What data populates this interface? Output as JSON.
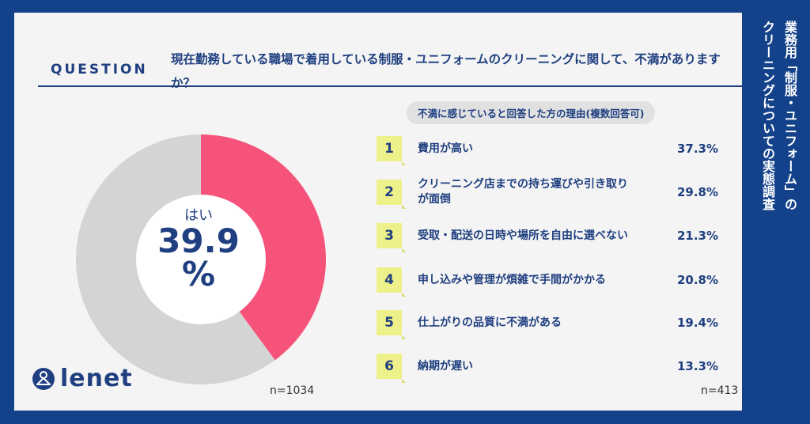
{
  "question": {
    "label": "QUESTION",
    "text": "現在勤務している職場で着用している制服・ユニフォームのクリーニングに関して、不満がありますか？"
  },
  "chart_data": [
    {
      "type": "pie",
      "categories": [
        "はい",
        ""
      ],
      "values": [
        39.9,
        60.1
      ],
      "center_label": "はい",
      "center_value": "39.9",
      "center_unit": "%",
      "n": "n=1034",
      "colors": [
        "#f6537a",
        "#d4d4d4"
      ]
    },
    {
      "type": "table",
      "title": "不満に感じていると回答した方の理由(複数回答可)",
      "rows": [
        {
          "rank": "1",
          "label": "費用が高い",
          "value": "37.3%"
        },
        {
          "rank": "2",
          "label": "クリーニング店までの持ち運びや引き取りが面倒",
          "value": "29.8%"
        },
        {
          "rank": "3",
          "label": "受取・配送の日時や場所を自由に選べない",
          "value": "21.3%"
        },
        {
          "rank": "4",
          "label": "申し込みや管理が煩雑で手間がかかる",
          "value": "20.8%"
        },
        {
          "rank": "5",
          "label": "仕上がりの品質に不満がある",
          "value": "19.4%"
        },
        {
          "rank": "6",
          "label": "納期が遅い",
          "value": "13.3%"
        }
      ],
      "n": "n=413"
    }
  ],
  "logo": {
    "text": "lenet",
    "icon": "hanger-person-icon"
  },
  "side_title": {
    "line1": "業務用「制服・ユニフォーム」の",
    "line2": "クリーニングについての実態調査"
  },
  "colors": {
    "navy": "#13418a",
    "accent_text": "#1f3f80",
    "pie_yes": "#f6537a",
    "pie_other": "#d4d4d4",
    "badge": "#eef08a"
  }
}
